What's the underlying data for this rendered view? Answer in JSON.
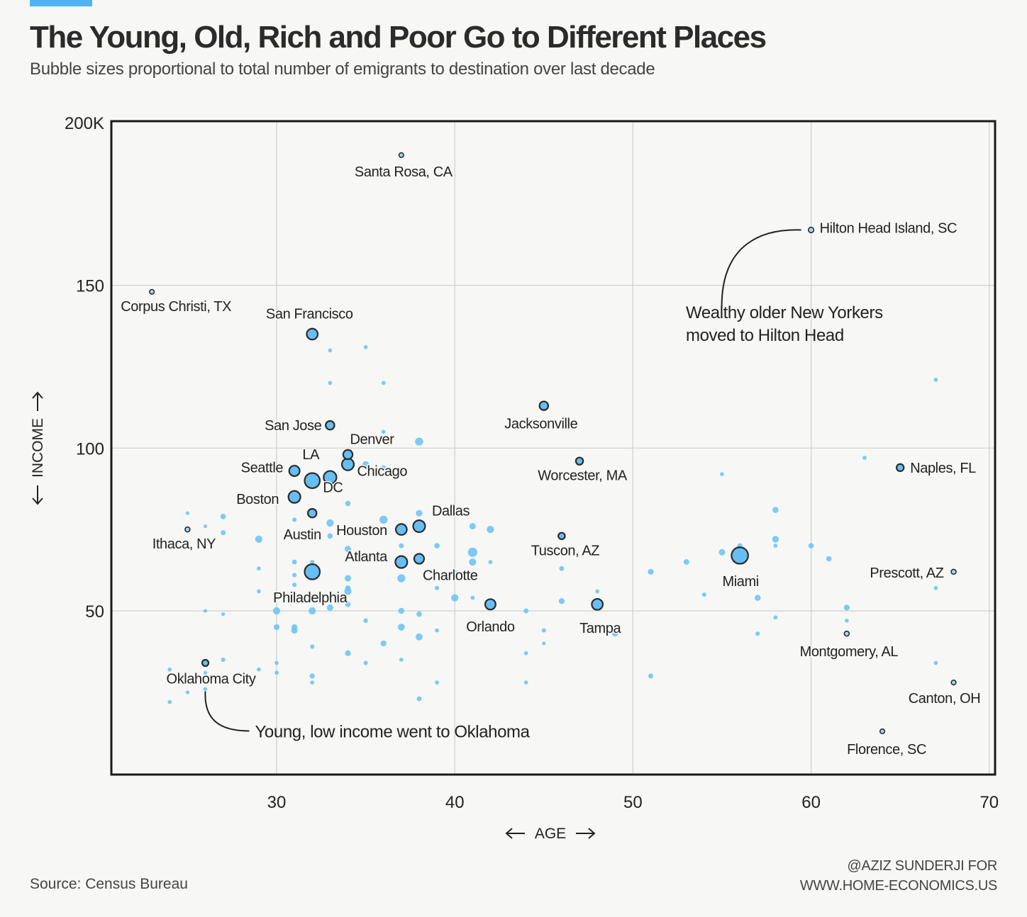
{
  "title": "The Young, Old, Rich and Poor Go to Different Places",
  "subtitle": "Bubble sizes proportional to total number of emigrants to destination over last decade",
  "source": "Source: Census Bureau",
  "credit_line1": "@AZIZ SUNDERJI FOR",
  "credit_line2": "WWW.HOME-ECONOMICS.US",
  "colors": {
    "bubble": "#6fc4f4",
    "bubble_highlight": "#5ab8f2",
    "outline": "#2b2b2b",
    "accent": "#4fb3f2"
  },
  "chart_data": {
    "type": "scatter",
    "xlabel": "AGE",
    "ylabel": "INCOME",
    "xlim": [
      21,
      70
    ],
    "ylim": [
      0,
      200
    ],
    "x_ticks": [
      30,
      40,
      50,
      60,
      70
    ],
    "y_ticks": [
      50,
      100,
      150,
      200
    ],
    "y_tick_labels": [
      "50",
      "100",
      "150",
      "200K"
    ],
    "grid": true,
    "labeled_points": [
      {
        "name": "Santa Rosa, CA",
        "age": 37,
        "income": 190,
        "size": 0.7,
        "outlined": false
      },
      {
        "name": "Hilton Head Island, SC",
        "age": 60,
        "income": 167,
        "size": 1,
        "outlined": true
      },
      {
        "name": "Corpus Christi, TX",
        "age": 23,
        "income": 148,
        "size": 0.7,
        "outlined": true
      },
      {
        "name": "San Francisco",
        "age": 32,
        "income": 135,
        "size": 5,
        "outlined": true
      },
      {
        "name": "Jacksonville",
        "age": 45,
        "income": 113,
        "size": 3,
        "outlined": true
      },
      {
        "name": "San Jose",
        "age": 33,
        "income": 107,
        "size": 3,
        "outlined": true
      },
      {
        "name": "Denver",
        "age": 34,
        "income": 98,
        "size": 3.5,
        "outlined": true
      },
      {
        "name": "Worcester, MA",
        "age": 47,
        "income": 96,
        "size": 2,
        "outlined": true
      },
      {
        "name": "Naples, FL",
        "age": 65,
        "income": 94,
        "size": 2,
        "outlined": true
      },
      {
        "name": "Seattle",
        "age": 31,
        "income": 93,
        "size": 4.5,
        "outlined": true
      },
      {
        "name": "LA",
        "age": 32,
        "income": 90,
        "size": 10,
        "outlined": true
      },
      {
        "name": "Chicago",
        "age": 34,
        "income": 95,
        "size": 6,
        "outlined": true
      },
      {
        "name": "Boston",
        "age": 31,
        "income": 85,
        "size": 6,
        "outlined": true
      },
      {
        "name": "DC",
        "age": 33,
        "income": 91,
        "size": 7,
        "outlined": true
      },
      {
        "name": "Austin",
        "age": 32,
        "income": 80,
        "size": 3,
        "outlined": true
      },
      {
        "name": "Dallas",
        "age": 38,
        "income": 76,
        "size": 6,
        "outlined": true
      },
      {
        "name": "Houston",
        "age": 37,
        "income": 75,
        "size": 5,
        "outlined": true
      },
      {
        "name": "Ithaca, NY",
        "age": 25,
        "income": 75,
        "size": 0.8,
        "outlined": true
      },
      {
        "name": "Tuscon, AZ",
        "age": 46,
        "income": 73,
        "size": 1.6,
        "outlined": true
      },
      {
        "name": "Atlanta",
        "age": 37,
        "income": 65,
        "size": 6,
        "outlined": true
      },
      {
        "name": "Charlotte",
        "age": 38,
        "income": 66,
        "size": 4,
        "outlined": true
      },
      {
        "name": "Miami",
        "age": 56,
        "income": 67,
        "size": 12,
        "outlined": true
      },
      {
        "name": "Prescott, AZ",
        "age": 68,
        "income": 62,
        "size": 0.8,
        "outlined": true
      },
      {
        "name": "Philadelphia",
        "age": 32,
        "income": 62,
        "size": 10,
        "outlined": true
      },
      {
        "name": "Orlando",
        "age": 42,
        "income": 52,
        "size": 4.5,
        "outlined": true
      },
      {
        "name": "Tampa",
        "age": 48,
        "income": 52,
        "size": 5,
        "outlined": true
      },
      {
        "name": "Montgomery, AL",
        "age": 62,
        "income": 43,
        "size": 0.8,
        "outlined": true
      },
      {
        "name": "Oklahoma City",
        "age": 26,
        "income": 34,
        "size": 1.5,
        "outlined": true
      },
      {
        "name": "Canton, OH",
        "age": 68,
        "income": 28,
        "size": 0.7,
        "outlined": true
      },
      {
        "name": "Florence, SC",
        "age": 64,
        "income": 13,
        "size": 0.7,
        "outlined": true
      }
    ],
    "unlabeled_points": [
      [
        33,
        130,
        0.5
      ],
      [
        35,
        131,
        0.5
      ],
      [
        33,
        120,
        0.5
      ],
      [
        36,
        120,
        0.5
      ],
      [
        36,
        105,
        0.5
      ],
      [
        38,
        102,
        2.5
      ],
      [
        35,
        95,
        1.5
      ],
      [
        36,
        94,
        0.7
      ],
      [
        37,
        93,
        0.5
      ],
      [
        67,
        121,
        0.5
      ],
      [
        63,
        97,
        0.5
      ],
      [
        55,
        92,
        0.5
      ],
      [
        27,
        79,
        1
      ],
      [
        25,
        80,
        0.4
      ],
      [
        26,
        76,
        0.4
      ],
      [
        27,
        74,
        0.8
      ],
      [
        29,
        72,
        2
      ],
      [
        31,
        78,
        0.6
      ],
      [
        33,
        77,
        2
      ],
      [
        33,
        73,
        1
      ],
      [
        34,
        83,
        1
      ],
      [
        36,
        78,
        2.5
      ],
      [
        38,
        80,
        1.5
      ],
      [
        41,
        76,
        1.5
      ],
      [
        42,
        75,
        2
      ],
      [
        37,
        70,
        0.8
      ],
      [
        39,
        70,
        1
      ],
      [
        41,
        68,
        3.5
      ],
      [
        41,
        65,
        2
      ],
      [
        42,
        65,
        0.5
      ],
      [
        40,
        62,
        0.5
      ],
      [
        34,
        69,
        1.5
      ],
      [
        34,
        60,
        1.5
      ],
      [
        34,
        56,
        2
      ],
      [
        34,
        57,
        1
      ],
      [
        34,
        52,
        1
      ],
      [
        33,
        51,
        1.5
      ],
      [
        32,
        50,
        2
      ],
      [
        32,
        65,
        0.6
      ],
      [
        31,
        65,
        0.8
      ],
      [
        31,
        61,
        0.6
      ],
      [
        31,
        58,
        0.6
      ],
      [
        29,
        63,
        0.5
      ],
      [
        29,
        56,
        0.5
      ],
      [
        37,
        60,
        2.5
      ],
      [
        39,
        57,
        0.6
      ],
      [
        40,
        54,
        2
      ],
      [
        41,
        54,
        0.5
      ],
      [
        30,
        50,
        2
      ],
      [
        26,
        50,
        0.4
      ],
      [
        27,
        49,
        0.4
      ],
      [
        30,
        45,
        1.2
      ],
      [
        31,
        45,
        1.2
      ],
      [
        31,
        44,
        1.5
      ],
      [
        32,
        39,
        0.6
      ],
      [
        34,
        37,
        1.2
      ],
      [
        35,
        34,
        0.6
      ],
      [
        35,
        47,
        0.7
      ],
      [
        36,
        40,
        1.2
      ],
      [
        37,
        45,
        1.8
      ],
      [
        37,
        50,
        1.3
      ],
      [
        38,
        42,
        1.8
      ],
      [
        38,
        49,
        1
      ],
      [
        39,
        44,
        0.5
      ],
      [
        37,
        35,
        0.5
      ],
      [
        30,
        34,
        0.5
      ],
      [
        30,
        31,
        0.5
      ],
      [
        29,
        32,
        0.5
      ],
      [
        27,
        35,
        0.6
      ],
      [
        32,
        30,
        0.9
      ],
      [
        32,
        28,
        0.5
      ],
      [
        24,
        32,
        0.5
      ],
      [
        24,
        22,
        0.5
      ],
      [
        25,
        25,
        0.4
      ],
      [
        26,
        31,
        0.4
      ],
      [
        26,
        26,
        0.4
      ],
      [
        38,
        23,
        0.8
      ],
      [
        39,
        28,
        0.5
      ],
      [
        44,
        50,
        0.8
      ],
      [
        44,
        37,
        0.5
      ],
      [
        44,
        28,
        0.5
      ],
      [
        45,
        44,
        0.6
      ],
      [
        45,
        40,
        0.4
      ],
      [
        46,
        63,
        0.8
      ],
      [
        46,
        53,
        1.2
      ],
      [
        48,
        56,
        0.5
      ],
      [
        49,
        43,
        1.2
      ],
      [
        51,
        62,
        1.2
      ],
      [
        51,
        30,
        0.8
      ],
      [
        53,
        65,
        1.1
      ],
      [
        54,
        55,
        0.6
      ],
      [
        55,
        68,
        1.5
      ],
      [
        56,
        70,
        0.8
      ],
      [
        57,
        54,
        1.3
      ],
      [
        57,
        43,
        0.6
      ],
      [
        58,
        81,
        1.3
      ],
      [
        58,
        72,
        1.6
      ],
      [
        58,
        70,
        0.5
      ],
      [
        58,
        48,
        0.5
      ],
      [
        60,
        70,
        1
      ],
      [
        61,
        66,
        1
      ],
      [
        62,
        51,
        1.2
      ],
      [
        62,
        47,
        0.5
      ],
      [
        67,
        57,
        0.5
      ],
      [
        67,
        34,
        0.5
      ]
    ],
    "annotations": [
      {
        "text_lines": [
          "Wealthy older New Yorkers",
          "moved to Hilton Head"
        ],
        "target": "Hilton Head Island, SC"
      },
      {
        "text_lines": [
          "Young, low income went to Oklahoma"
        ],
        "target": "Oklahoma City"
      }
    ]
  }
}
